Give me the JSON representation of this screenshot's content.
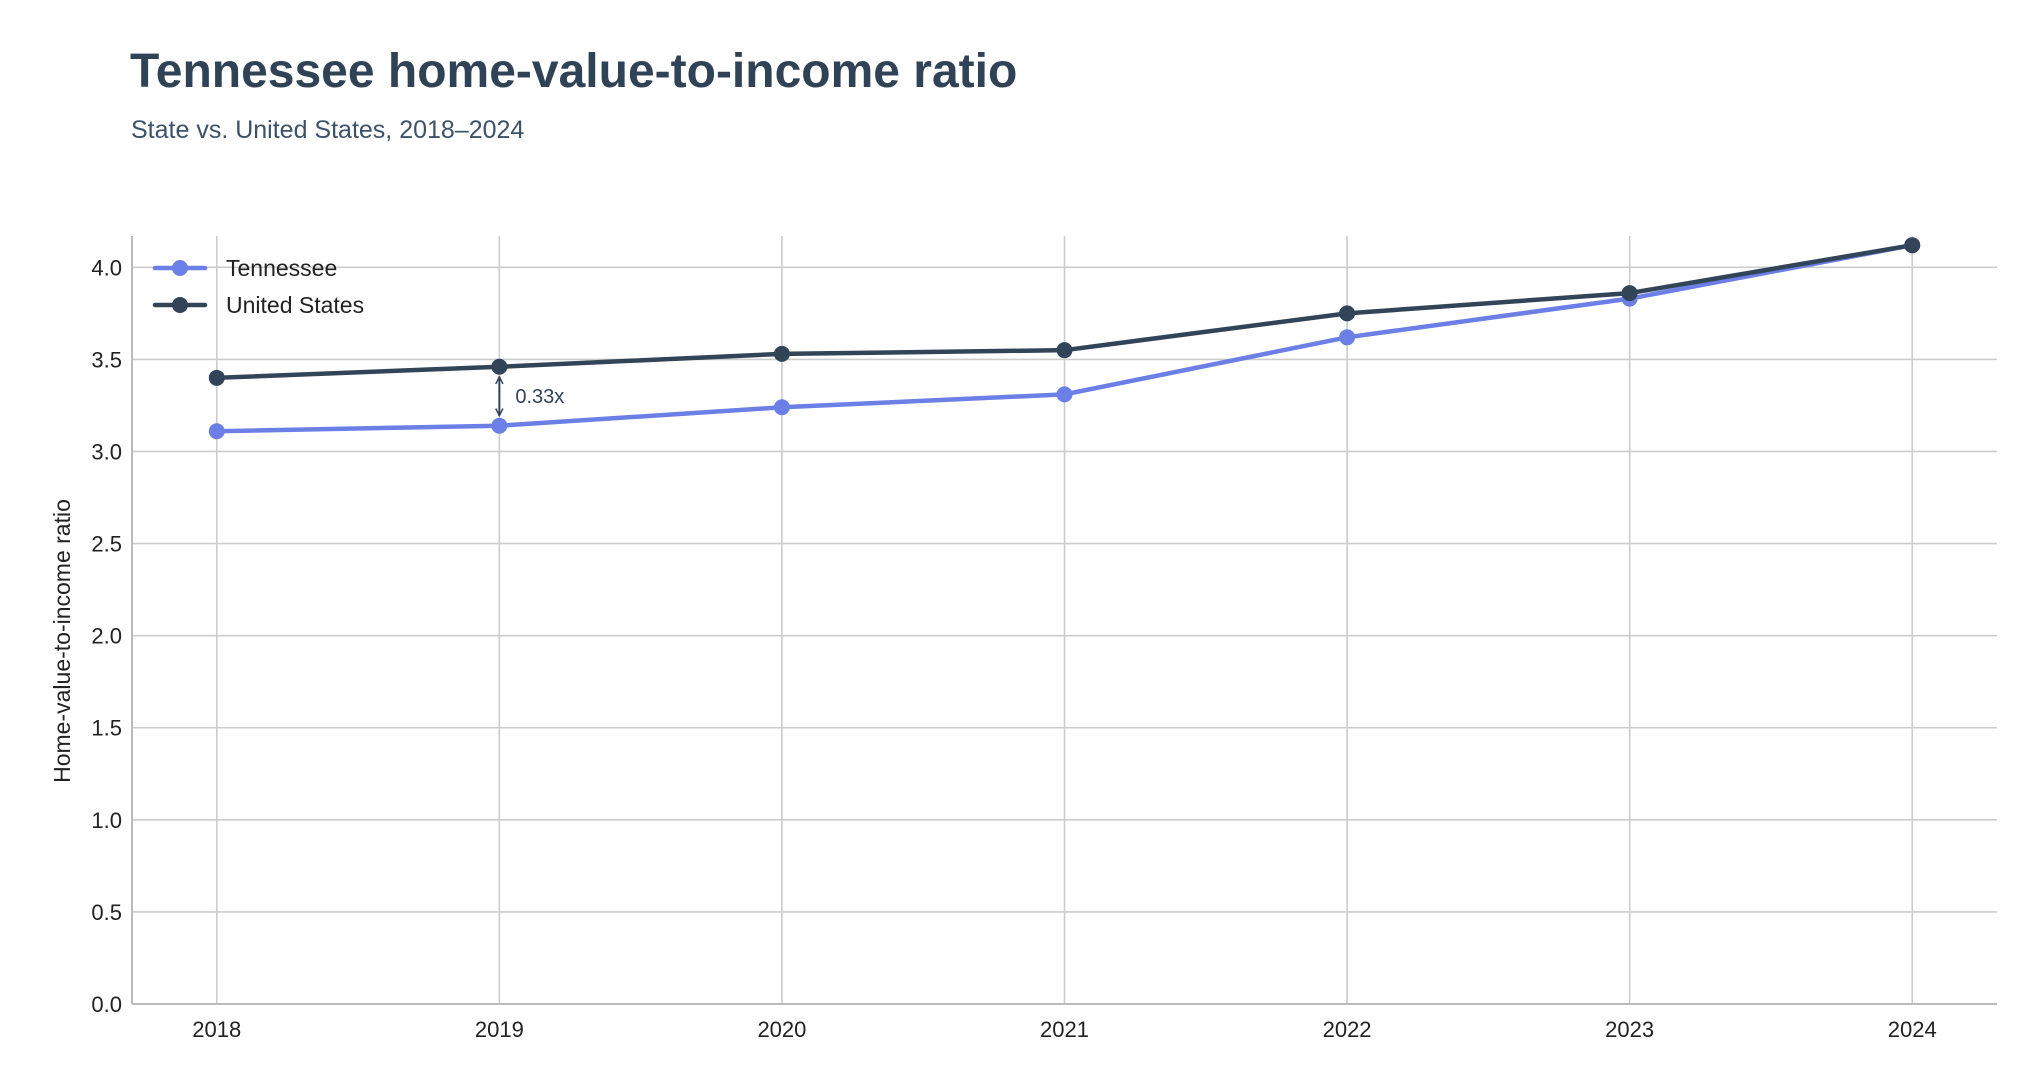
{
  "title": "Tennessee home-value-to-income ratio",
  "subtitle": "State vs. United States, 2018–2024",
  "colors": {
    "tennessee": "#6b7fe6",
    "united_states": "#324457",
    "grid": "#cccccc",
    "axis": "#bbbbbb",
    "text": "#222222"
  },
  "chart_data": {
    "type": "line",
    "title": "Tennessee home-value-to-income ratio",
    "subtitle": "State vs. United States, 2018–2024",
    "xlabel": "",
    "ylabel": "Home-value-to-income ratio",
    "x": [
      2018,
      2019,
      2020,
      2021,
      2022,
      2023,
      2024
    ],
    "xlim": [
      2017.7,
      2024.3
    ],
    "ylim": [
      0,
      4.17
    ],
    "y_ticks": [
      0.0,
      0.5,
      1.0,
      1.5,
      2.0,
      2.5,
      3.0,
      3.5,
      4.0
    ],
    "y_tick_labels": [
      "0.0",
      "0.5",
      "1.0",
      "1.5",
      "2.0",
      "2.5",
      "3.0",
      "3.5",
      "4.0"
    ],
    "x_tick_labels": [
      "2018",
      "2019",
      "2020",
      "2021",
      "2022",
      "2023",
      "2024"
    ],
    "grid": true,
    "legend_position": "top-left",
    "series": [
      {
        "name": "Tennessee",
        "color": "#6b7fe6",
        "values": [
          3.11,
          3.14,
          3.24,
          3.31,
          3.62,
          3.83,
          4.12
        ]
      },
      {
        "name": "United States",
        "color": "#324457",
        "values": [
          3.4,
          3.46,
          3.53,
          3.55,
          3.75,
          3.86,
          4.12
        ]
      }
    ],
    "annotations": [
      {
        "text": "0.33x",
        "x": 2019,
        "y_from": 3.14,
        "y_to": 3.46,
        "type": "double-arrow"
      }
    ]
  }
}
